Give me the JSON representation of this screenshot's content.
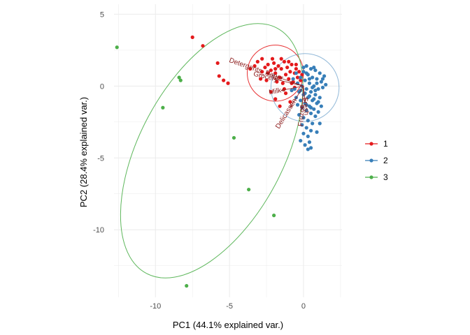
{
  "chart_data": {
    "type": "scatter",
    "subtype": "pca-biplot",
    "xlabel": "PC1 (44.1% explained var.)",
    "ylabel": "PC2 (28.4% explained var.)",
    "xlim": [
      -12.8,
      2.6
    ],
    "ylim": [
      -14.7,
      5.7
    ],
    "xticks": [
      -10,
      -5,
      0
    ],
    "yticks": [
      -10,
      -5,
      0,
      5
    ],
    "grid": true,
    "legend": {
      "position": "right",
      "entries": [
        "1",
        "2",
        "3"
      ]
    },
    "series": [
      {
        "name": "1",
        "color": "#e41a1c",
        "points": [
          [
            -7.5,
            3.4
          ],
          [
            -6.8,
            2.8
          ],
          [
            -5.8,
            1.6
          ],
          [
            -5.7,
            0.7
          ],
          [
            -5.4,
            0.4
          ],
          [
            -5.1,
            0.2
          ],
          [
            -3.6,
            1.2
          ],
          [
            -3.1,
            1.7
          ],
          [
            -2.8,
            1.9
          ],
          [
            -2.6,
            1.3
          ],
          [
            -2.4,
            1.5
          ],
          [
            -2.2,
            1.1
          ],
          [
            -2.0,
            1.6
          ],
          [
            -1.9,
            0.9
          ],
          [
            -1.7,
            1.4
          ],
          [
            -1.6,
            0.6
          ],
          [
            -1.5,
            1.2
          ],
          [
            -1.3,
            1.7
          ],
          [
            -1.2,
            0.8
          ],
          [
            -1.1,
            1.3
          ],
          [
            -1.0,
            0.5
          ],
          [
            -0.9,
            1.0
          ],
          [
            -0.8,
            1.5
          ],
          [
            -0.7,
            0.3
          ],
          [
            -0.6,
            0.9
          ],
          [
            -0.5,
            1.2
          ],
          [
            -0.4,
            0.6
          ],
          [
            -0.3,
            1.0
          ],
          [
            -0.2,
            0.4
          ],
          [
            -0.1,
            0.8
          ],
          [
            -2.5,
            0.4
          ],
          [
            -2.2,
            -0.4
          ],
          [
            -1.9,
            -0.9
          ],
          [
            -1.6,
            -1.4
          ],
          [
            -1.4,
            0.2
          ],
          [
            -1.2,
            -0.5
          ],
          [
            -2.8,
            1.0
          ],
          [
            -3.3,
            1.4
          ],
          [
            -2.1,
            1.9
          ],
          [
            -1.5,
            1.9
          ],
          [
            -1.0,
            1.7
          ],
          [
            -0.5,
            1.5
          ],
          [
            -1.8,
            0.3
          ],
          [
            -0.8,
            0.2
          ],
          [
            -2.4,
            0.9
          ],
          [
            -1.3,
            -0.2
          ],
          [
            -0.6,
            -0.1
          ],
          [
            -0.9,
            -1.1
          ],
          [
            -1.9,
            1.2
          ],
          [
            -2.9,
            0.5
          ]
        ]
      },
      {
        "name": "2",
        "color": "#377eb8",
        "points": [
          [
            0.2,
            1.4
          ],
          [
            0.5,
            1.2
          ],
          [
            0.8,
            1.1
          ],
          [
            1.1,
            0.9
          ],
          [
            1.4,
            0.7
          ],
          [
            0.0,
            1.0
          ],
          [
            0.3,
            0.8
          ],
          [
            0.6,
            0.6
          ],
          [
            0.9,
            0.5
          ],
          [
            1.2,
            0.3
          ],
          [
            -0.2,
            0.6
          ],
          [
            0.1,
            0.4
          ],
          [
            0.4,
            0.2
          ],
          [
            0.7,
            0.0
          ],
          [
            1.0,
            -0.2
          ],
          [
            1.3,
            -0.1
          ],
          [
            -0.4,
            0.2
          ],
          [
            -0.1,
            0.0
          ],
          [
            0.2,
            -0.2
          ],
          [
            0.5,
            -0.4
          ],
          [
            0.8,
            -0.6
          ],
          [
            1.1,
            -0.8
          ],
          [
            -0.6,
            -0.2
          ],
          [
            -0.3,
            -0.4
          ],
          [
            0.0,
            -0.6
          ],
          [
            0.3,
            -0.8
          ],
          [
            0.6,
            -1.0
          ],
          [
            0.9,
            -1.2
          ],
          [
            1.2,
            -1.4
          ],
          [
            -0.5,
            -0.8
          ],
          [
            -0.2,
            -1.0
          ],
          [
            0.1,
            -1.2
          ],
          [
            0.4,
            -1.4
          ],
          [
            0.7,
            -1.6
          ],
          [
            1.0,
            -1.8
          ],
          [
            -0.4,
            -1.3
          ],
          [
            -0.1,
            -1.5
          ],
          [
            0.2,
            -1.7
          ],
          [
            0.5,
            -1.9
          ],
          [
            0.8,
            -2.1
          ],
          [
            -0.3,
            -2.0
          ],
          [
            0.0,
            -2.2
          ],
          [
            0.3,
            -2.4
          ],
          [
            0.6,
            -2.6
          ],
          [
            -0.1,
            -2.7
          ],
          [
            0.2,
            -2.9
          ],
          [
            0.5,
            -3.1
          ],
          [
            0.0,
            -3.3
          ],
          [
            0.3,
            -3.5
          ],
          [
            -0.2,
            -3.8
          ],
          [
            0.4,
            -3.9
          ],
          [
            0.1,
            -4.1
          ],
          [
            0.3,
            -4.4
          ],
          [
            0.5,
            -4.3
          ],
          [
            0.9,
            -3.2
          ],
          [
            1.1,
            -2.6
          ],
          [
            0.7,
            1.3
          ],
          [
            1.3,
            0.5
          ],
          [
            0.0,
            1.3
          ],
          [
            -0.5,
            0.9
          ],
          [
            -0.7,
            0.5
          ],
          [
            -0.8,
            -0.3
          ],
          [
            1.5,
            0.1
          ],
          [
            0.9,
            0.2
          ],
          [
            0.2,
            0.9
          ],
          [
            0.4,
            0.5
          ],
          [
            0.6,
            -0.1
          ],
          [
            0.8,
            -0.3
          ],
          [
            -0.2,
            -0.3
          ],
          [
            0.1,
            -0.5
          ],
          [
            0.4,
            -0.7
          ],
          [
            0.7,
            -0.9
          ],
          [
            1.0,
            -1.1
          ],
          [
            0.2,
            -1.3
          ],
          [
            0.5,
            -1.5
          ]
        ]
      },
      {
        "name": "3",
        "color": "#4daf4a",
        "points": [
          [
            -12.6,
            2.7
          ],
          [
            -8.4,
            0.6
          ],
          [
            -8.3,
            0.4
          ],
          [
            -9.5,
            -1.5
          ],
          [
            -4.7,
            -3.6
          ],
          [
            -3.7,
            -7.2
          ],
          [
            -2.0,
            -9.0
          ],
          [
            -7.9,
            -13.9
          ]
        ]
      }
    ],
    "ellipses": [
      {
        "group": "1",
        "center": [
          -1.9,
          0.9
        ],
        "rx": 1.9,
        "ry": 1.9,
        "angle": 0
      },
      {
        "group": "2",
        "center": [
          0.1,
          -0.1
        ],
        "rx": 2.3,
        "ry": 2.3,
        "angle": 0
      },
      {
        "group": "3",
        "center": [
          -6.2,
          -4.5
        ],
        "rx": 9.4,
        "ry": 5.0,
        "angle": -62
      }
    ],
    "loadings": [
      {
        "name": "Detergents_Paper",
        "label": "Detergents_Paper",
        "x": -2.5,
        "y": 0.9
      },
      {
        "name": "Grocery",
        "label": "Grocery",
        "x": -2.0,
        "y": 0.5
      },
      {
        "name": "Milk",
        "label": "Milk",
        "x": -1.5,
        "y": -0.3
      },
      {
        "name": "Delicassen",
        "label": "Delicassen",
        "x": -0.9,
        "y": -1.5
      },
      {
        "name": "Frozen",
        "label": "Frozen",
        "x": -0.1,
        "y": -1.6
      },
      {
        "name": "Fresh",
        "label": "Fresh",
        "x": 0.1,
        "y": -1.1
      }
    ]
  }
}
